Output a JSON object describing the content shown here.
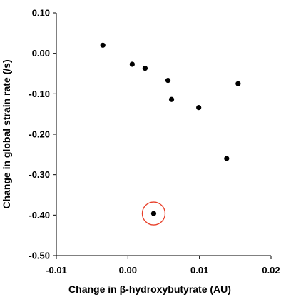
{
  "chart_data": {
    "type": "scatter",
    "title": "",
    "xlabel": "Change in β-hydroxybutyrate (AU)",
    "ylabel": "Change in global strain rate (/s)",
    "xlim": [
      -0.01,
      0.02
    ],
    "ylim": [
      -0.5,
      0.1
    ],
    "x_ticks": [
      -0.01,
      0.0,
      0.01,
      0.02
    ],
    "x_tick_labels": [
      "-0.01",
      "0.00",
      "0.01",
      "0.02"
    ],
    "y_ticks": [
      0.1,
      0.0,
      -0.1,
      -0.2,
      -0.3,
      -0.4,
      -0.5
    ],
    "y_tick_labels": [
      "0.10",
      "0.00",
      "-0.10",
      "-0.20",
      "-0.30",
      "-0.40",
      "-0.50"
    ],
    "grid": false,
    "series": [
      {
        "color": "#000000",
        "points": [
          {
            "x": -0.0035,
            "y": 0.02
          },
          {
            "x": 0.0006,
            "y": -0.027
          },
          {
            "x": 0.0024,
            "y": -0.037
          },
          {
            "x": 0.0056,
            "y": -0.067
          },
          {
            "x": 0.0061,
            "y": -0.114
          },
          {
            "x": 0.0099,
            "y": -0.134
          },
          {
            "x": 0.0154,
            "y": -0.075
          },
          {
            "x": 0.0138,
            "y": -0.26
          },
          {
            "x": 0.0036,
            "y": -0.396
          }
        ]
      }
    ],
    "annotations": [
      {
        "type": "circle",
        "x": 0.0036,
        "y": -0.396,
        "color": "#e8402a"
      }
    ]
  }
}
